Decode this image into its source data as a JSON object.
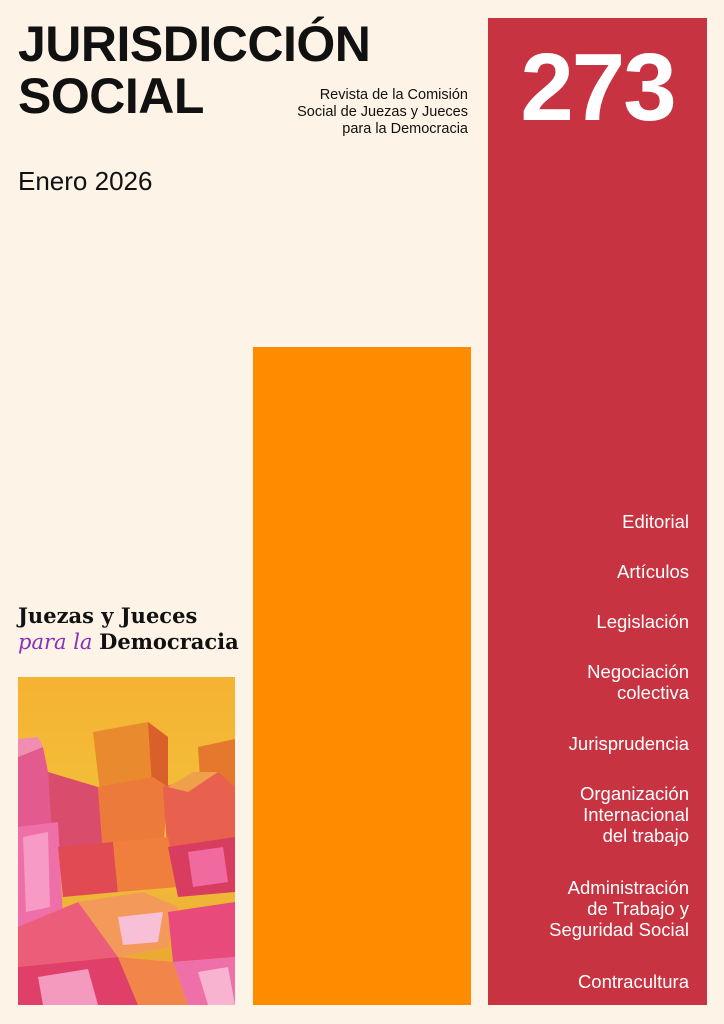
{
  "masthead": {
    "title_line1": "JURISDICCIÓN",
    "title_line2": "SOCIAL",
    "subtitle_line1": "Revista de la Comisión",
    "subtitle_line2": "Social de Juezas y Jueces",
    "subtitle_line3": "para la Democracia",
    "date": "Enero 2026"
  },
  "issue": {
    "number": "273"
  },
  "sections": [
    {
      "lines": [
        "Editorial"
      ]
    },
    {
      "lines": [
        "Artículos"
      ]
    },
    {
      "lines": [
        "Legislación"
      ]
    },
    {
      "lines": [
        "Negociación",
        "colectiva"
      ]
    },
    {
      "lines": [
        "Jurisprudencia"
      ]
    },
    {
      "lines": [
        "Organización",
        "Internacional",
        "del trabajo"
      ]
    },
    {
      "lines": [
        "Administración",
        "de Trabajo y",
        "Seguridad Social"
      ]
    },
    {
      "lines": [
        "Contracultura"
      ]
    }
  ],
  "logo": {
    "line1": "Juezas y Jueces",
    "line2_italic": "para la",
    "line2_bold": "Democracia"
  },
  "colors": {
    "background": "#fdf3e6",
    "red_panel": "#c73340",
    "orange_bar": "#ff8c00",
    "logo_accent": "#8b2fb8"
  },
  "cover_art": {
    "icon": "abstract-painting-image"
  }
}
